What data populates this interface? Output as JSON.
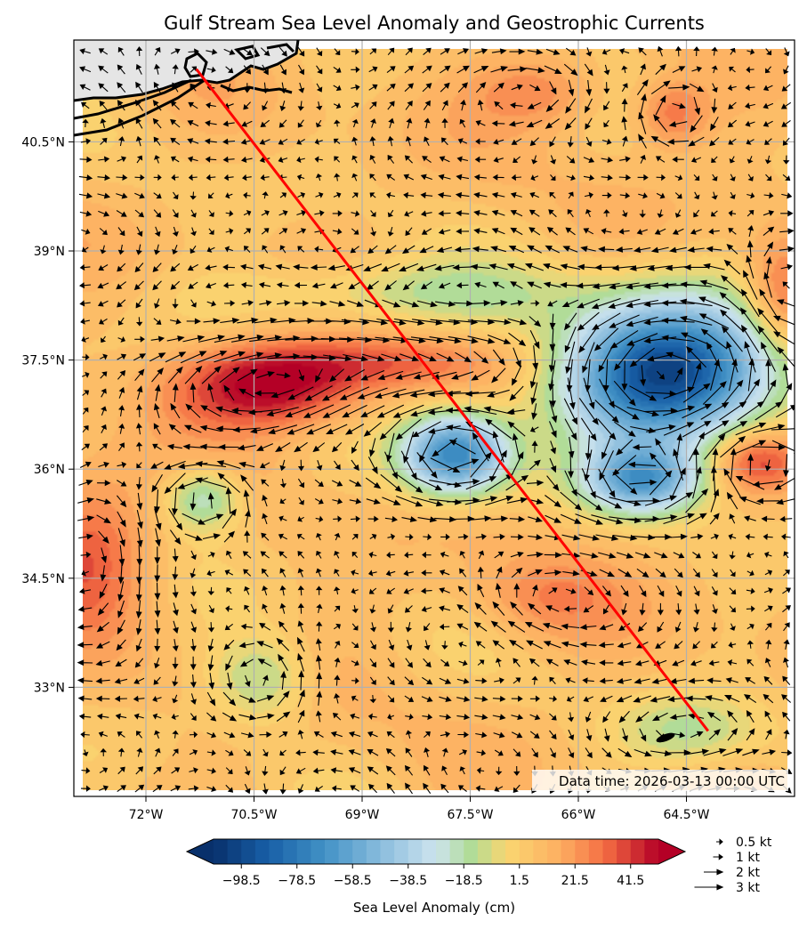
{
  "chart_data": {
    "type": "contour-map",
    "title": "Gulf Stream Sea Level Anomaly and Geostrophic Currents",
    "timestamp": "Data time: 2026-03-13 00:00 UTC",
    "lon_range": [
      -73,
      -63
    ],
    "lat_range": [
      31.5,
      41.9
    ],
    "x_ticks": [
      {
        "lon": -72.0,
        "label": "72°W"
      },
      {
        "lon": -70.5,
        "label": "70.5°W"
      },
      {
        "lon": -69.0,
        "label": "69°W"
      },
      {
        "lon": -67.5,
        "label": "67.5°W"
      },
      {
        "lon": -66.0,
        "label": "66°W"
      },
      {
        "lon": -64.5,
        "label": "64.5°W"
      }
    ],
    "y_ticks": [
      {
        "lat": 40.5,
        "label": "40.5°N"
      },
      {
        "lat": 39.0,
        "label": "39°N"
      },
      {
        "lat": 37.5,
        "label": "37.5°N"
      },
      {
        "lat": 36.0,
        "label": "36°N"
      },
      {
        "lat": 34.5,
        "label": "34.5°N"
      },
      {
        "lat": 33.0,
        "label": "33°N"
      }
    ],
    "colorbar": {
      "label": "Sea Level Anomaly (cm)",
      "min": -108.5,
      "max": 51.5,
      "step": 5,
      "ticks": [
        "−98.5",
        "−78.5",
        "−58.5",
        "−38.5",
        "−18.5",
        "1.5",
        "21.5",
        "41.5"
      ],
      "tick_values": [
        -98.5,
        -78.5,
        -58.5,
        -38.5,
        -18.5,
        1.5,
        21.5,
        41.5
      ]
    },
    "quiver_key": [
      {
        "speed": 0.5,
        "label": "0.5 kt"
      },
      {
        "speed": 1,
        "label": "1 kt"
      },
      {
        "speed": 2,
        "label": "2 kt"
      },
      {
        "speed": 3,
        "label": "3 kt"
      }
    ],
    "track": [
      {
        "lon": -71.3,
        "lat": 41.5
      },
      {
        "lon": -64.2,
        "lat": 32.4
      }
    ],
    "features": [
      {
        "name": "warm core ridge",
        "lon": -70.3,
        "lat": 37.1,
        "rx": 1.3,
        "ry": 0.55,
        "amp": 48
      },
      {
        "name": "warm jet core",
        "lon": -68.8,
        "lat": 37.45,
        "rx": 1.9,
        "ry": 0.35,
        "amp": 22
      },
      {
        "name": "cold eddy north",
        "lon": -64.8,
        "lat": 37.3,
        "rx": 1.4,
        "ry": 0.95,
        "amp": -112
      },
      {
        "name": "cold eddy central",
        "lon": -67.7,
        "lat": 36.2,
        "rx": 0.75,
        "ry": 0.55,
        "amp": -82
      },
      {
        "name": "cold eddy east",
        "lon": -65.1,
        "lat": 35.85,
        "rx": 0.8,
        "ry": 0.45,
        "amp": -62
      },
      {
        "name": "cold ring west",
        "lon": -71.2,
        "lat": 35.6,
        "rx": 0.55,
        "ry": 0.45,
        "amp": -34
      },
      {
        "name": "cold band north",
        "lon": -68.5,
        "lat": 38.4,
        "rx": 2.4,
        "ry": 0.45,
        "amp": -22
      },
      {
        "name": "cold patch south",
        "lon": -70.4,
        "lat": 33.1,
        "rx": 0.7,
        "ry": 0.6,
        "amp": -24
      },
      {
        "name": "cold patch southeast",
        "lon": -64.5,
        "lat": 32.4,
        "rx": 1.0,
        "ry": 0.5,
        "amp": -20
      },
      {
        "name": "warm southwest",
        "lon": -72.8,
        "lat": 34.9,
        "rx": 0.8,
        "ry": 1.0,
        "amp": 30
      },
      {
        "name": "warm east",
        "lon": -63.2,
        "lat": 38.3,
        "rx": 0.5,
        "ry": 0.8,
        "amp": 26
      },
      {
        "name": "warm southeast",
        "lon": -63.5,
        "lat": 36.1,
        "rx": 0.6,
        "ry": 0.4,
        "amp": 30
      },
      {
        "name": "warm north",
        "lon": -66.5,
        "lat": 41.2,
        "rx": 0.9,
        "ry": 0.5,
        "amp": 20
      },
      {
        "name": "warm northeast",
        "lon": -64.7,
        "lat": 40.9,
        "rx": 0.5,
        "ry": 0.45,
        "amp": 24
      },
      {
        "name": "warm south central",
        "lon": -66.5,
        "lat": 34.2,
        "rx": 1.0,
        "ry": 0.6,
        "amp": 16
      }
    ]
  }
}
